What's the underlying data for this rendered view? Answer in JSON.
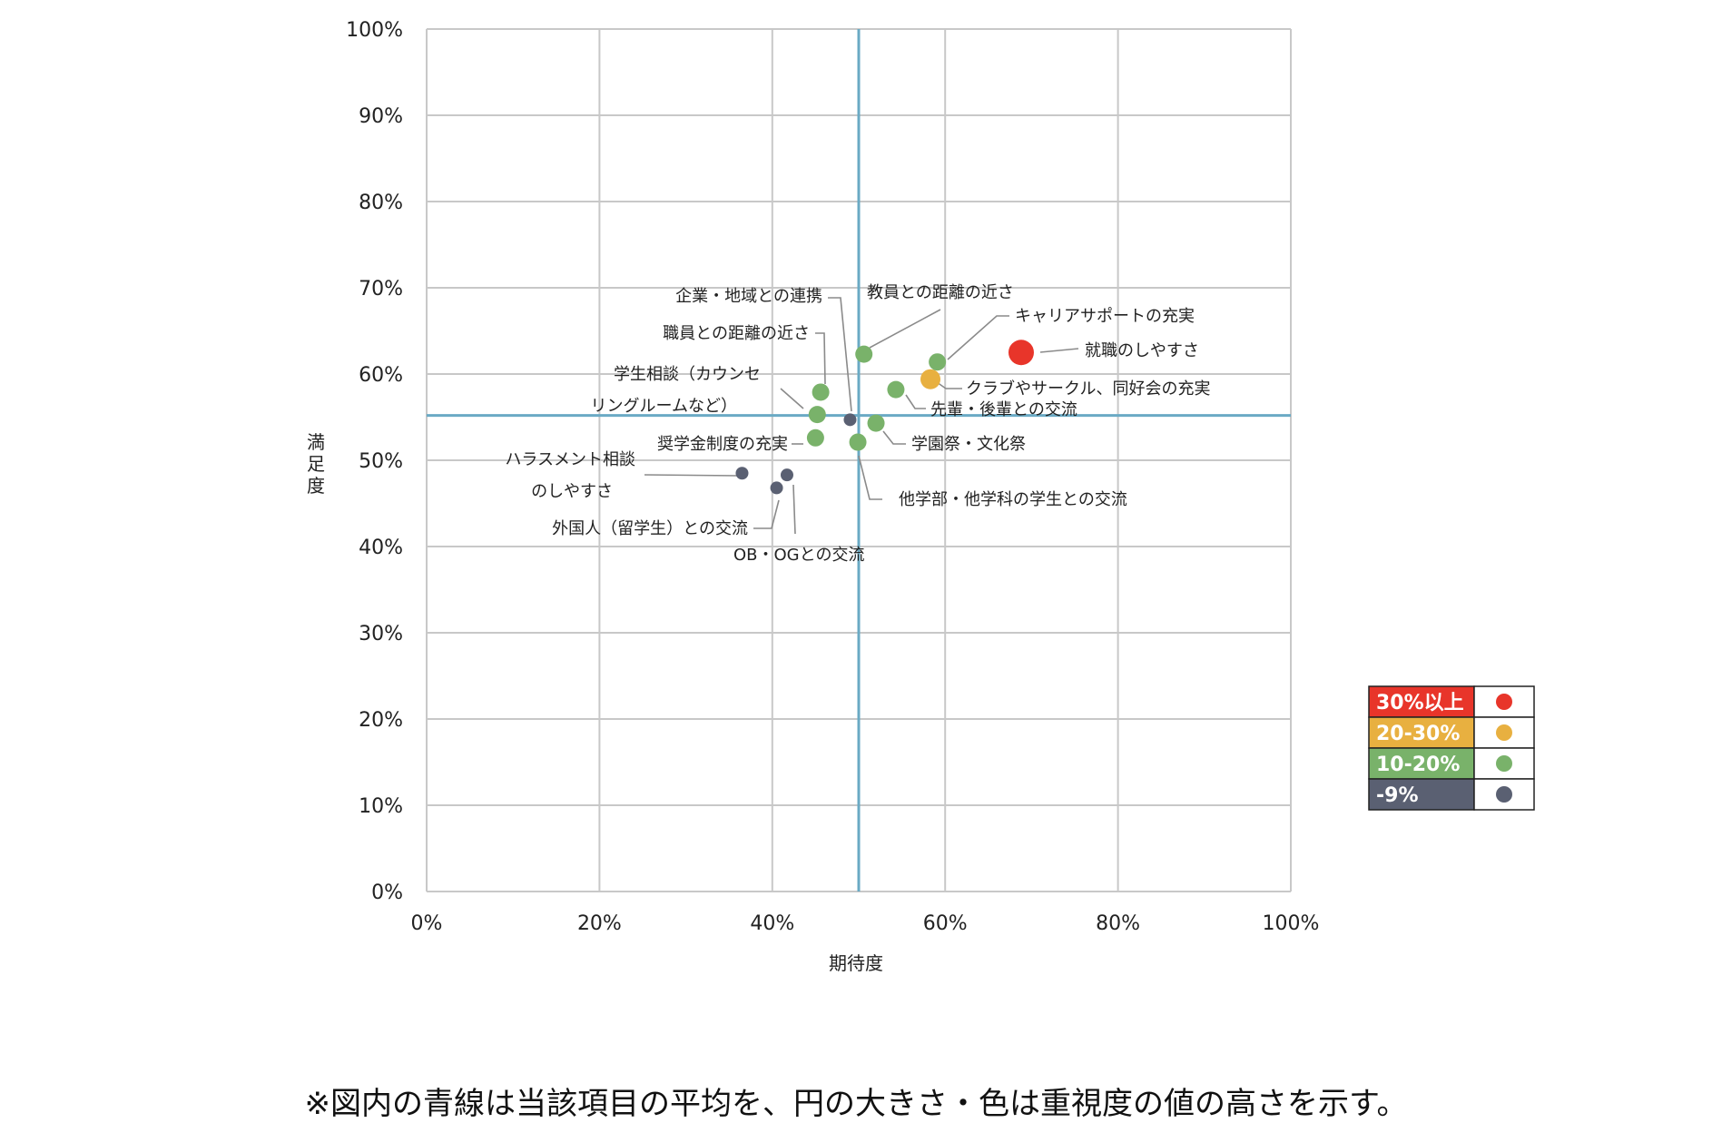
{
  "chart_data": {
    "type": "scatter",
    "xlabel": "期待度",
    "ylabel": "満足度",
    "xlim": [
      0,
      100
    ],
    "ylim": [
      0,
      100
    ],
    "x_ticks": [
      "0%",
      "20%",
      "40%",
      "60%",
      "80%",
      "100%"
    ],
    "y_ticks": [
      "0%",
      "10%",
      "20%",
      "30%",
      "40%",
      "50%",
      "60%",
      "70%",
      "80%",
      "90%",
      "100%"
    ],
    "grid": true,
    "mean_lines": {
      "x": 50,
      "y": 55.2,
      "color": "#6aaac4"
    },
    "legend_placement": "right",
    "legend": [
      {
        "label": "30%以上",
        "color": "#e8352a"
      },
      {
        "label": "20-30%",
        "color": "#e8b040"
      },
      {
        "label": "10-20%",
        "color": "#79b26a"
      },
      {
        "label": "-9%",
        "color": "#5a6072"
      }
    ],
    "points": [
      {
        "label": "就職のしやすさ",
        "x": 68.8,
        "y": 62.5,
        "group": 0
      },
      {
        "label": "クラブやサークル、同好会の充実",
        "x": 58.3,
        "y": 59.4,
        "group": 1
      },
      {
        "label": "キャリアサポートの充実",
        "x": 59.1,
        "y": 61.4,
        "group": 2
      },
      {
        "label": "教員との距離の近さ",
        "x": 50.6,
        "y": 62.3,
        "group": 2
      },
      {
        "label": "先輩・後輩との交流",
        "x": 54.3,
        "y": 58.2,
        "group": 2
      },
      {
        "label": "学園祭・文化祭",
        "x": 52.0,
        "y": 54.3,
        "group": 2
      },
      {
        "label": "他学部・他学科の学生との交流",
        "x": 49.9,
        "y": 52.1,
        "group": 2
      },
      {
        "label": "職員との距離の近さ",
        "x": 45.6,
        "y": 57.9,
        "group": 2
      },
      {
        "label": "学生相談（カウンセ リングルームなど）",
        "x": 45.2,
        "y": 55.3,
        "group": 2
      },
      {
        "label": "奨学金制度の充実",
        "x": 45.0,
        "y": 52.6,
        "group": 2
      },
      {
        "label": "企業・地域との連携",
        "x": 49.0,
        "y": 54.7,
        "group": 3
      },
      {
        "label": "ハラスメント相談 のしやすさ",
        "x": 36.5,
        "y": 48.5,
        "group": 3
      },
      {
        "label": "外国人（留学生）との交流",
        "x": 40.5,
        "y": 46.8,
        "group": 3
      },
      {
        "label": "OB・OGとの交流",
        "x": 41.7,
        "y": 48.3,
        "group": 3
      }
    ]
  },
  "footnote": "※図内の青線は当該項目の平均を、円の大きさ・色は重視度の値の高さを示す。"
}
